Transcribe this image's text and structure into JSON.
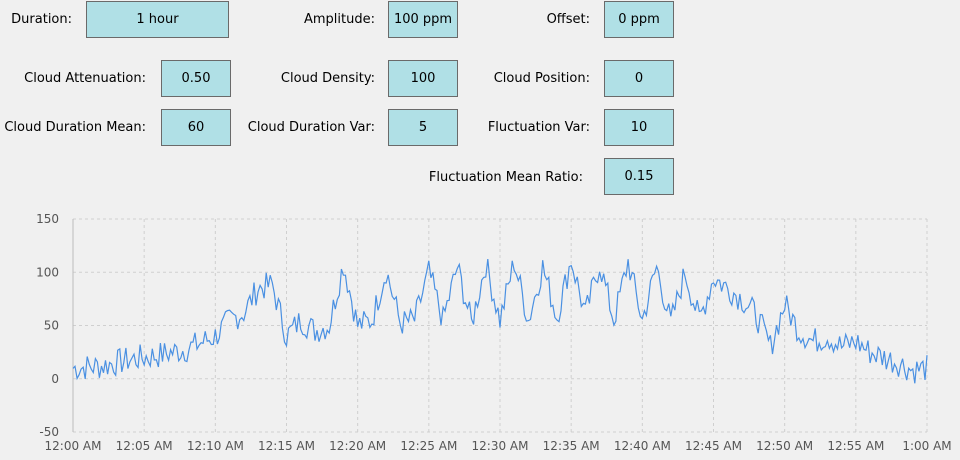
{
  "settings": {
    "duration": {
      "label": "Duration:",
      "value": "1 hour"
    },
    "amplitude": {
      "label": "Amplitude:",
      "value": "100 ppm"
    },
    "offset": {
      "label": "Offset:",
      "value": "0 ppm"
    },
    "cloud_attenuation": {
      "label": "Cloud Attenuation:",
      "value": "0.50"
    },
    "cloud_density": {
      "label": "Cloud Density:",
      "value": "100"
    },
    "cloud_position": {
      "label": "Cloud Position:",
      "value": "0"
    },
    "cloud_duration_mean": {
      "label": "Cloud Duration Mean:",
      "value": "60"
    },
    "cloud_duration_var": {
      "label": "Cloud Duration Var:",
      "value": "5"
    },
    "fluctuation_var": {
      "label": "Fluctuation Var:",
      "value": "10"
    },
    "fluctuation_mean_ratio": {
      "label": "Fluctuation Mean Ratio:",
      "value": "0.15"
    }
  },
  "chart_data": {
    "type": "line",
    "ylim": [
      -50,
      150
    ],
    "y_ticks": [
      "150",
      "100",
      "50",
      "0",
      "-50"
    ],
    "x_ticks": [
      "12:00 AM",
      "12:05 AM",
      "12:10 AM",
      "12:15 AM",
      "12:20 AM",
      "12:25 AM",
      "12:30 AM",
      "12:35 AM",
      "12:40 AM",
      "12:45 AM",
      "12:50 AM",
      "12:55 AM",
      "1:00 AM"
    ],
    "grid": true,
    "line_color": "#4a90e2",
    "series": [
      {
        "x_minutes": [
          0,
          2,
          4,
          6,
          8,
          10,
          11,
          12,
          13,
          14,
          15,
          16,
          17,
          18,
          19,
          20,
          21,
          22,
          23,
          24,
          25,
          26,
          27,
          28,
          29,
          30,
          31,
          32,
          33,
          34,
          35,
          36,
          37,
          38,
          39,
          40,
          41,
          42,
          43,
          44,
          45,
          46,
          47,
          48,
          49,
          50,
          51,
          52,
          53,
          54,
          55,
          56,
          57,
          58,
          59,
          60
        ],
        "values": [
          10,
          12,
          18,
          22,
          28,
          40,
          55,
          62,
          85,
          88,
          40,
          55,
          45,
          50,
          108,
          50,
          55,
          102,
          52,
          55,
          100,
          55,
          105,
          52,
          108,
          55,
          110,
          55,
          105,
          58,
          112,
          60,
          108,
          55,
          110,
          55,
          105,
          52,
          100,
          55,
          95,
          85,
          75,
          60,
          30,
          70,
          45,
          35,
          40,
          30,
          35,
          25,
          20,
          15,
          8,
          10
        ]
      }
    ]
  }
}
